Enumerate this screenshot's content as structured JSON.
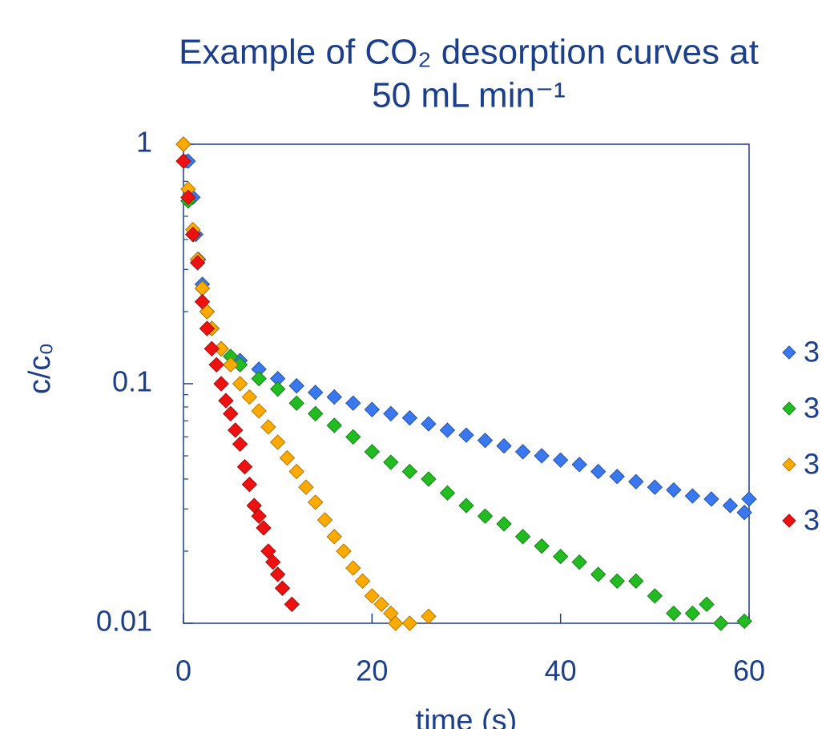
{
  "chart_data": {
    "type": "scatter",
    "title": [
      "Example of CO₂ desorption curves at",
      "50 mL min⁻¹"
    ],
    "xlabel": "time (s)",
    "ylabel": "c/c₀",
    "xlim": [
      0,
      60
    ],
    "xticks": [
      0,
      20,
      40,
      60
    ],
    "ylim": [
      0.01,
      1
    ],
    "yticks": [
      0.01,
      0.1,
      1
    ],
    "yscale": "log",
    "yminorticks": [
      0.02,
      0.03,
      0.04,
      0.05,
      0.06,
      0.07,
      0.08,
      0.09,
      0.2,
      0.3,
      0.4,
      0.5,
      0.6,
      0.7,
      0.8,
      0.9
    ],
    "legend": "right",
    "series": [
      {
        "name": "3",
        "color": "#3a78f0",
        "x": [
          0,
          0.5,
          1,
          1.3,
          1.6,
          2,
          2.5,
          3,
          4,
          5,
          6,
          8,
          10,
          12,
          14,
          16,
          18,
          20,
          22,
          24,
          26,
          28,
          30,
          32,
          34,
          36,
          38,
          40,
          42,
          44,
          46,
          48,
          50,
          52,
          54,
          56,
          58,
          59.5,
          60
        ],
        "values": [
          1,
          0.85,
          0.6,
          0.42,
          0.33,
          0.26,
          0.2,
          0.17,
          0.14,
          0.13,
          0.125,
          0.115,
          0.105,
          0.098,
          0.092,
          0.088,
          0.083,
          0.078,
          0.075,
          0.072,
          0.068,
          0.064,
          0.061,
          0.058,
          0.055,
          0.052,
          0.05,
          0.048,
          0.046,
          0.043,
          0.041,
          0.039,
          0.037,
          0.036,
          0.034,
          0.033,
          0.031,
          0.029,
          0.033
        ]
      },
      {
        "name": "3",
        "color": "#22bb22",
        "x": [
          0,
          0.5,
          1,
          1.5,
          2,
          2.5,
          3,
          4,
          5,
          6,
          8,
          10,
          12,
          14,
          16,
          18,
          20,
          22,
          24,
          26,
          28,
          30,
          32,
          34,
          36,
          38,
          40,
          42,
          44,
          46,
          48,
          50,
          52,
          54,
          55.5,
          57,
          59.5
        ],
        "values": [
          1,
          0.58,
          0.42,
          0.33,
          0.25,
          0.2,
          0.17,
          0.14,
          0.13,
          0.12,
          0.105,
          0.095,
          0.083,
          0.075,
          0.067,
          0.06,
          0.052,
          0.047,
          0.043,
          0.04,
          0.035,
          0.031,
          0.028,
          0.026,
          0.023,
          0.021,
          0.019,
          0.018,
          0.016,
          0.015,
          0.015,
          0.013,
          0.011,
          0.011,
          0.012,
          0.01,
          0.0102
        ]
      },
      {
        "name": "3",
        "color": "#ffaa00",
        "x": [
          0,
          0.5,
          1,
          1.5,
          2,
          2.5,
          3,
          4,
          5,
          6,
          7,
          8,
          9,
          10,
          11,
          12,
          13,
          14,
          15,
          16,
          17,
          18,
          19,
          20,
          21,
          22,
          22.5,
          24,
          26
        ],
        "values": [
          1,
          0.65,
          0.44,
          0.33,
          0.25,
          0.2,
          0.17,
          0.14,
          0.12,
          0.1,
          0.088,
          0.077,
          0.066,
          0.057,
          0.049,
          0.043,
          0.037,
          0.032,
          0.027,
          0.023,
          0.02,
          0.017,
          0.015,
          0.013,
          0.012,
          0.011,
          0.01,
          0.01,
          0.0107
        ]
      },
      {
        "name": "3",
        "color": "#ee1111",
        "x": [
          0,
          0.5,
          1,
          1.5,
          2,
          2.5,
          3,
          3.5,
          4,
          4.5,
          5,
          5.5,
          6,
          6.5,
          7,
          7.5,
          8,
          8.5,
          9,
          9.5,
          10,
          10.5,
          11.5
        ],
        "values": [
          0.85,
          0.6,
          0.42,
          0.32,
          0.22,
          0.17,
          0.14,
          0.12,
          0.1,
          0.085,
          0.075,
          0.064,
          0.056,
          0.045,
          0.038,
          0.031,
          0.028,
          0.025,
          0.02,
          0.018,
          0.016,
          0.014,
          0.012
        ]
      }
    ]
  }
}
